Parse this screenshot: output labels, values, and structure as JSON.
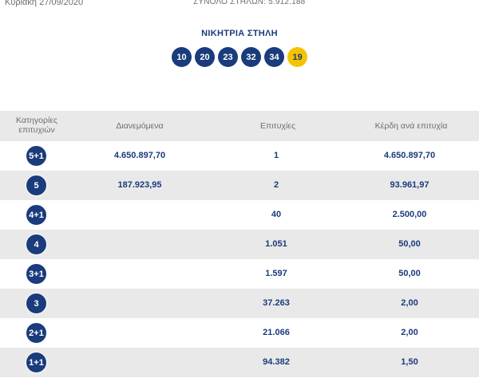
{
  "header": {
    "date": "Κυριακή 27/09/2020",
    "total_columns": "ΣΥΝΟΛΟ ΣΤΗΛΩΝ: 5.912.188"
  },
  "winning": {
    "title": "ΝΙΚΗΤΡΙΑ ΣΤΗΛΗ",
    "numbers": [
      "10",
      "20",
      "23",
      "32",
      "34"
    ],
    "joker": "19",
    "colors": {
      "number_ball": "#1a3b7c",
      "joker_ball": "#f5c400"
    }
  },
  "table": {
    "columns": {
      "category": "Κατηγορίες επιτυχιών",
      "distributed": "Διανεμόμενα",
      "winners": "Επιτυχίες",
      "prize": "Κέρδη ανά επιτυχία"
    },
    "rows": [
      {
        "category": "5+1",
        "distributed": "4.650.897,70",
        "winners": "1",
        "prize": "4.650.897,70"
      },
      {
        "category": "5",
        "distributed": "187.923,95",
        "winners": "2",
        "prize": "93.961,97"
      },
      {
        "category": "4+1",
        "distributed": "",
        "winners": "40",
        "prize": "2.500,00"
      },
      {
        "category": "4",
        "distributed": "",
        "winners": "1.051",
        "prize": "50,00"
      },
      {
        "category": "3+1",
        "distributed": "",
        "winners": "1.597",
        "prize": "50,00"
      },
      {
        "category": "3",
        "distributed": "",
        "winners": "37.263",
        "prize": "2,00"
      },
      {
        "category": "2+1",
        "distributed": "",
        "winners": "21.066",
        "prize": "2,00"
      },
      {
        "category": "1+1",
        "distributed": "",
        "winners": "94.382",
        "prize": "1,50"
      }
    ]
  }
}
